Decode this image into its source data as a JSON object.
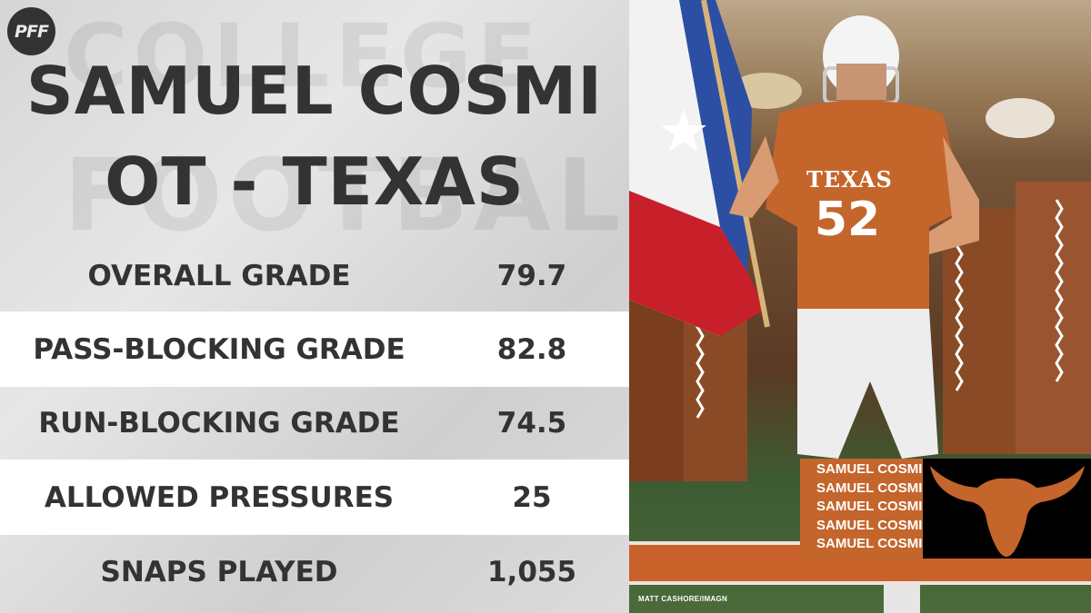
{
  "brand": {
    "logo_text": "PFF"
  },
  "background_words": [
    "COLLEGE",
    "FOOTBALL"
  ],
  "player": {
    "name": "SAMUEL COSMI",
    "position_team": "OT - TEXAS"
  },
  "stats": [
    {
      "label": "OVERALL GRADE",
      "value": "79.7"
    },
    {
      "label": "PASS-BLOCKING GRADE",
      "value": "82.8"
    },
    {
      "label": "RUN-BLOCKING GRADE",
      "value": "74.5"
    },
    {
      "label": "ALLOWED PRESSURES",
      "value": "25"
    },
    {
      "label": "SNAPS PLAYED",
      "value": "1,055"
    }
  ],
  "photo": {
    "jersey_team": "TEXAS",
    "jersey_number": "52",
    "name_repeat": [
      "SAMUEL COSMI",
      "SAMUEL COSMI",
      "SAMUEL COSMI",
      "SAMUEL COSMI",
      "SAMUEL COSMI"
    ],
    "credit": "MATT CASHORE/IMAGN"
  },
  "colors": {
    "text_dark": "#333333",
    "burnt_orange": "#c4652c",
    "row_highlight": "#ffffff"
  },
  "icons": {
    "team_logo": "longhorn-icon",
    "flag": "texas-flag-icon"
  }
}
